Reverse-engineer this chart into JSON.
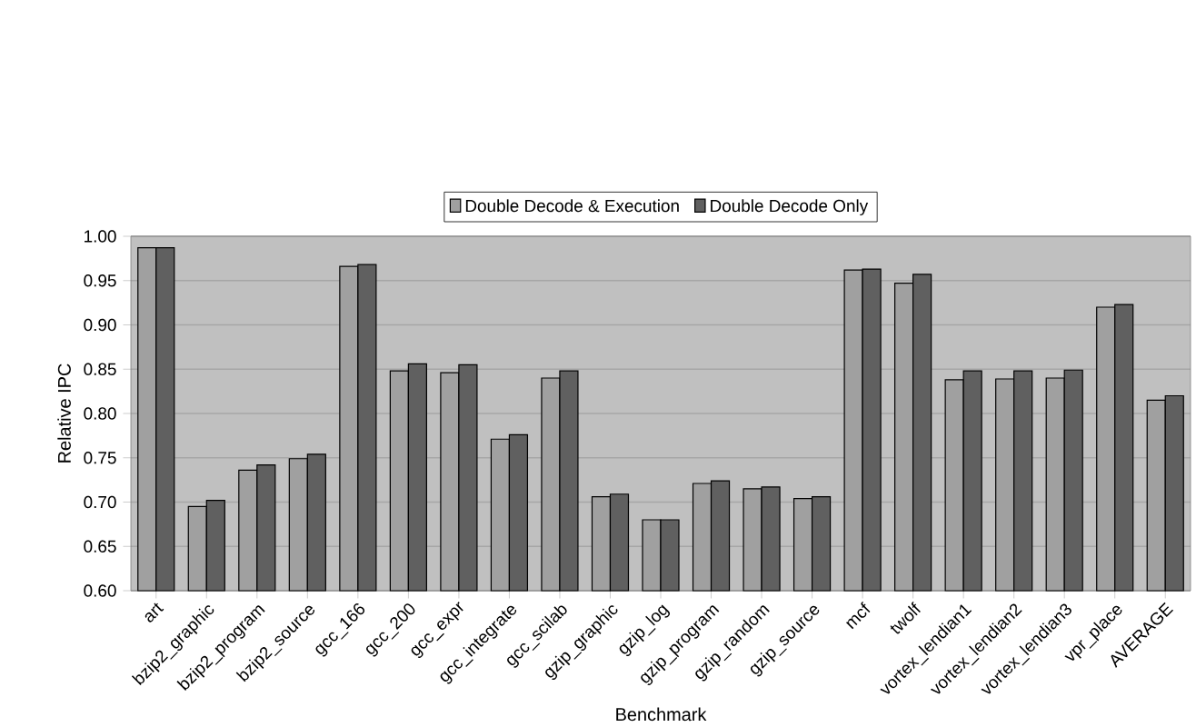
{
  "chart_data": {
    "type": "bar",
    "xlabel": "Benchmark",
    "ylabel": "Relative IPC",
    "categories": [
      "art",
      "bzip2_graphic",
      "bzip2_program",
      "bzip2_source",
      "gcc_166",
      "gcc_200",
      "gcc_expr",
      "gcc_integrate",
      "gcc_scilab",
      "gzip_graphic",
      "gzip_log",
      "gzip_program",
      "gzip_random",
      "gzip_source",
      "mcf",
      "twolf",
      "vortex_lendian1",
      "vortex_lendian2",
      "vortex_lendian3",
      "vpr_place",
      "AVERAGE"
    ],
    "series": [
      {
        "name": "Double Decode & Execution",
        "color": "#a0a0a0",
        "values": [
          0.987,
          0.695,
          0.736,
          0.749,
          0.966,
          0.848,
          0.846,
          0.771,
          0.84,
          0.706,
          0.68,
          0.721,
          0.715,
          0.704,
          0.962,
          0.947,
          0.838,
          0.839,
          0.84,
          0.92,
          0.815
        ]
      },
      {
        "name": "Double Decode Only",
        "color": "#606060",
        "values": [
          0.987,
          0.702,
          0.742,
          0.754,
          0.968,
          0.856,
          0.855,
          0.776,
          0.848,
          0.709,
          0.68,
          0.724,
          0.717,
          0.706,
          0.963,
          0.957,
          0.848,
          0.848,
          0.849,
          0.923,
          0.82
        ]
      }
    ],
    "ylim": [
      0.6,
      1.0
    ],
    "yticks": [
      {
        "value": 0.6,
        "label": "0.60"
      },
      {
        "value": 0.65,
        "label": "0.65"
      },
      {
        "value": 0.7,
        "label": "0.70"
      },
      {
        "value": 0.75,
        "label": "0.75"
      },
      {
        "value": 0.8,
        "label": "0.80"
      },
      {
        "value": 0.85,
        "label": "0.85"
      },
      {
        "value": 0.9,
        "label": "0.90"
      },
      {
        "value": 0.95,
        "label": "0.95"
      },
      {
        "value": 1.0,
        "label": "1.00"
      }
    ],
    "grid": "y",
    "legend": "top"
  }
}
